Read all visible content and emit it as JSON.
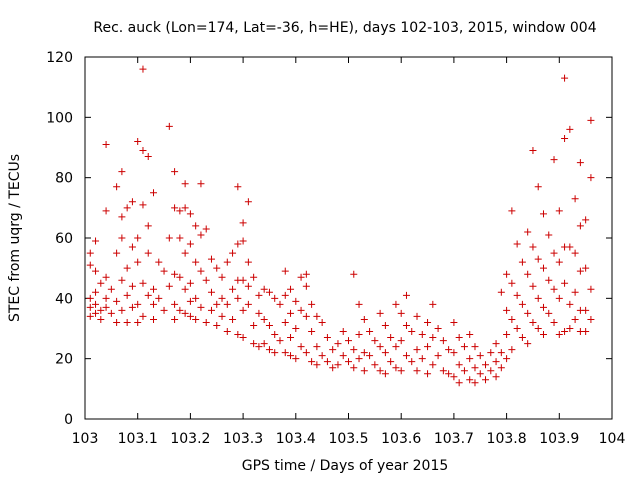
{
  "colors": {
    "points": "#cc0000",
    "axis": "#000000",
    "background": "#ffffff"
  },
  "chart_data": {
    "type": "scatter",
    "title": "Rec. auck (Lon=174, Lat=-36, h=HE), days 102-103, 2015, window 004",
    "xlabel": "GPS time / Days of year 2015",
    "ylabel": "STEC from uqrg / TECUs",
    "xlim": [
      103,
      104
    ],
    "ylim": [
      0,
      120
    ],
    "xticks": [
      103,
      103.1,
      103.2,
      103.3,
      103.4,
      103.5,
      103.6,
      103.7,
      103.8,
      103.9,
      104
    ],
    "xtick_labels": [
      "103",
      "103.1",
      "103.2",
      "103.3",
      "103.4",
      "103.5",
      "103.6",
      "103.7",
      "103.8",
      "103.9",
      "104"
    ],
    "yticks": [
      0,
      20,
      40,
      60,
      80,
      100,
      120
    ],
    "ytick_labels": [
      "0",
      "20",
      "40",
      "60",
      "80",
      "100",
      "120"
    ],
    "marker": "+",
    "series": [
      {
        "name": "STEC",
        "points": [
          [
            103.01,
            40
          ],
          [
            103.01,
            37
          ],
          [
            103.01,
            34
          ],
          [
            103.01,
            51
          ],
          [
            103.01,
            55
          ],
          [
            103.02,
            38
          ],
          [
            103.02,
            35
          ],
          [
            103.02,
            42
          ],
          [
            103.02,
            59
          ],
          [
            103.02,
            49
          ],
          [
            103.03,
            36
          ],
          [
            103.03,
            45
          ],
          [
            103.03,
            33
          ],
          [
            103.04,
            69
          ],
          [
            103.04,
            91
          ],
          [
            103.04,
            47
          ],
          [
            103.04,
            40
          ],
          [
            103.04,
            37
          ],
          [
            103.05,
            43
          ],
          [
            103.05,
            35
          ],
          [
            103.06,
            77
          ],
          [
            103.06,
            55
          ],
          [
            103.06,
            39
          ],
          [
            103.06,
            32
          ],
          [
            103.07,
            82
          ],
          [
            103.07,
            67
          ],
          [
            103.07,
            60
          ],
          [
            103.07,
            46
          ],
          [
            103.07,
            36
          ],
          [
            103.08,
            70
          ],
          [
            103.08,
            50
          ],
          [
            103.08,
            41
          ],
          [
            103.08,
            32
          ],
          [
            103.09,
            72
          ],
          [
            103.09,
            57
          ],
          [
            103.09,
            44
          ],
          [
            103.09,
            37
          ],
          [
            103.1,
            92
          ],
          [
            103.1,
            60
          ],
          [
            103.1,
            52
          ],
          [
            103.1,
            38
          ],
          [
            103.1,
            32
          ],
          [
            103.11,
            116
          ],
          [
            103.11,
            89
          ],
          [
            103.11,
            71
          ],
          [
            103.11,
            45
          ],
          [
            103.11,
            34
          ],
          [
            103.12,
            87
          ],
          [
            103.12,
            64
          ],
          [
            103.12,
            55
          ],
          [
            103.12,
            41
          ],
          [
            103.13,
            75
          ],
          [
            103.13,
            43
          ],
          [
            103.13,
            38
          ],
          [
            103.13,
            33
          ],
          [
            103.14,
            52
          ],
          [
            103.14,
            40
          ],
          [
            103.15,
            49
          ],
          [
            103.15,
            36
          ],
          [
            103.16,
            97
          ],
          [
            103.16,
            60
          ],
          [
            103.16,
            44
          ],
          [
            103.17,
            82
          ],
          [
            103.17,
            70
          ],
          [
            103.17,
            48
          ],
          [
            103.17,
            38
          ],
          [
            103.17,
            33
          ],
          [
            103.18,
            69
          ],
          [
            103.18,
            60
          ],
          [
            103.18,
            47
          ],
          [
            103.18,
            36
          ],
          [
            103.19,
            78
          ],
          [
            103.19,
            70
          ],
          [
            103.19,
            55
          ],
          [
            103.19,
            43
          ],
          [
            103.19,
            35
          ],
          [
            103.2,
            68
          ],
          [
            103.2,
            58
          ],
          [
            103.2,
            45
          ],
          [
            103.2,
            39
          ],
          [
            103.2,
            34
          ],
          [
            103.21,
            64
          ],
          [
            103.21,
            52
          ],
          [
            103.21,
            40
          ],
          [
            103.21,
            33
          ],
          [
            103.22,
            78
          ],
          [
            103.22,
            61
          ],
          [
            103.22,
            49
          ],
          [
            103.22,
            37
          ],
          [
            103.23,
            63
          ],
          [
            103.23,
            46
          ],
          [
            103.23,
            32
          ],
          [
            103.24,
            53
          ],
          [
            103.24,
            42
          ],
          [
            103.24,
            36
          ],
          [
            103.25,
            50
          ],
          [
            103.25,
            38
          ],
          [
            103.25,
            31
          ],
          [
            103.26,
            47
          ],
          [
            103.26,
            40
          ],
          [
            103.26,
            34
          ],
          [
            103.27,
            52
          ],
          [
            103.27,
            38
          ],
          [
            103.27,
            29
          ],
          [
            103.28,
            55
          ],
          [
            103.28,
            43
          ],
          [
            103.28,
            33
          ],
          [
            103.29,
            77
          ],
          [
            103.29,
            58
          ],
          [
            103.29,
            46
          ],
          [
            103.29,
            40
          ],
          [
            103.29,
            28
          ],
          [
            103.3,
            65
          ],
          [
            103.3,
            59
          ],
          [
            103.3,
            46
          ],
          [
            103.3,
            36
          ],
          [
            103.3,
            27
          ],
          [
            103.31,
            72
          ],
          [
            103.31,
            52
          ],
          [
            103.31,
            44
          ],
          [
            103.31,
            38
          ],
          [
            103.32,
            47
          ],
          [
            103.32,
            31
          ],
          [
            103.32,
            25
          ],
          [
            103.33,
            41
          ],
          [
            103.33,
            35
          ],
          [
            103.33,
            24
          ],
          [
            103.34,
            43
          ],
          [
            103.34,
            33
          ],
          [
            103.34,
            25
          ],
          [
            103.35,
            42
          ],
          [
            103.35,
            31
          ],
          [
            103.35,
            23
          ],
          [
            103.36,
            40
          ],
          [
            103.36,
            28
          ],
          [
            103.36,
            22
          ],
          [
            103.37,
            38
          ],
          [
            103.37,
            26
          ],
          [
            103.38,
            49
          ],
          [
            103.38,
            41
          ],
          [
            103.38,
            32
          ],
          [
            103.38,
            22
          ],
          [
            103.39,
            43
          ],
          [
            103.39,
            35
          ],
          [
            103.39,
            27
          ],
          [
            103.39,
            21
          ],
          [
            103.4,
            39
          ],
          [
            103.4,
            30
          ],
          [
            103.4,
            20
          ],
          [
            103.41,
            47
          ],
          [
            103.41,
            36
          ],
          [
            103.41,
            24
          ],
          [
            103.42,
            48
          ],
          [
            103.42,
            44
          ],
          [
            103.42,
            34
          ],
          [
            103.42,
            22
          ],
          [
            103.43,
            38
          ],
          [
            103.43,
            29
          ],
          [
            103.43,
            19
          ],
          [
            103.44,
            34
          ],
          [
            103.44,
            24
          ],
          [
            103.44,
            18
          ],
          [
            103.45,
            32
          ],
          [
            103.45,
            21
          ],
          [
            103.46,
            27
          ],
          [
            103.46,
            19
          ],
          [
            103.47,
            23
          ],
          [
            103.47,
            17
          ],
          [
            103.48,
            25
          ],
          [
            103.48,
            18
          ],
          [
            103.49,
            29
          ],
          [
            103.49,
            21
          ],
          [
            103.5,
            26
          ],
          [
            103.5,
            19
          ],
          [
            103.51,
            48
          ],
          [
            103.51,
            23
          ],
          [
            103.51,
            17
          ],
          [
            103.52,
            38
          ],
          [
            103.52,
            28
          ],
          [
            103.52,
            20
          ],
          [
            103.53,
            33
          ],
          [
            103.53,
            22
          ],
          [
            103.53,
            16
          ],
          [
            103.54,
            29
          ],
          [
            103.54,
            21
          ],
          [
            103.55,
            26
          ],
          [
            103.55,
            18
          ],
          [
            103.56,
            35
          ],
          [
            103.56,
            24
          ],
          [
            103.56,
            16
          ],
          [
            103.57,
            31
          ],
          [
            103.57,
            22
          ],
          [
            103.57,
            15
          ],
          [
            103.58,
            27
          ],
          [
            103.58,
            19
          ],
          [
            103.59,
            38
          ],
          [
            103.59,
            24
          ],
          [
            103.59,
            17
          ],
          [
            103.6,
            35
          ],
          [
            103.6,
            26
          ],
          [
            103.6,
            16
          ],
          [
            103.61,
            41
          ],
          [
            103.61,
            31
          ],
          [
            103.61,
            21
          ],
          [
            103.62,
            29
          ],
          [
            103.62,
            19
          ],
          [
            103.63,
            34
          ],
          [
            103.63,
            23
          ],
          [
            103.63,
            16
          ],
          [
            103.64,
            28
          ],
          [
            103.64,
            20
          ],
          [
            103.65,
            32
          ],
          [
            103.65,
            24
          ],
          [
            103.65,
            15
          ],
          [
            103.66,
            38
          ],
          [
            103.66,
            27
          ],
          [
            103.66,
            18
          ],
          [
            103.67,
            30
          ],
          [
            103.67,
            21
          ],
          [
            103.68,
            26
          ],
          [
            103.68,
            16
          ],
          [
            103.69,
            23
          ],
          [
            103.69,
            15
          ],
          [
            103.7,
            32
          ],
          [
            103.7,
            22
          ],
          [
            103.7,
            14
          ],
          [
            103.71,
            27
          ],
          [
            103.71,
            18
          ],
          [
            103.71,
            12
          ],
          [
            103.72,
            24
          ],
          [
            103.72,
            16
          ],
          [
            103.73,
            28
          ],
          [
            103.73,
            20
          ],
          [
            103.73,
            13
          ],
          [
            103.74,
            24
          ],
          [
            103.74,
            17
          ],
          [
            103.74,
            12
          ],
          [
            103.75,
            21
          ],
          [
            103.75,
            15
          ],
          [
            103.76,
            18
          ],
          [
            103.76,
            13
          ],
          [
            103.77,
            22
          ],
          [
            103.77,
            16
          ],
          [
            103.78,
            25
          ],
          [
            103.78,
            19
          ],
          [
            103.78,
            14
          ],
          [
            103.79,
            42
          ],
          [
            103.79,
            22
          ],
          [
            103.79,
            17
          ],
          [
            103.8,
            48
          ],
          [
            103.8,
            36
          ],
          [
            103.8,
            28
          ],
          [
            103.8,
            20
          ],
          [
            103.81,
            69
          ],
          [
            103.81,
            45
          ],
          [
            103.81,
            33
          ],
          [
            103.81,
            23
          ],
          [
            103.82,
            58
          ],
          [
            103.82,
            41
          ],
          [
            103.82,
            30
          ],
          [
            103.83,
            52
          ],
          [
            103.83,
            38
          ],
          [
            103.83,
            27
          ],
          [
            103.84,
            62
          ],
          [
            103.84,
            48
          ],
          [
            103.84,
            35
          ],
          [
            103.84,
            25
          ],
          [
            103.85,
            89
          ],
          [
            103.85,
            57
          ],
          [
            103.85,
            44
          ],
          [
            103.85,
            32
          ],
          [
            103.86,
            77
          ],
          [
            103.86,
            53
          ],
          [
            103.86,
            40
          ],
          [
            103.86,
            30
          ],
          [
            103.87,
            68
          ],
          [
            103.87,
            50
          ],
          [
            103.87,
            37
          ],
          [
            103.87,
            28
          ],
          [
            103.88,
            61
          ],
          [
            103.88,
            46
          ],
          [
            103.88,
            35
          ],
          [
            103.89,
            86
          ],
          [
            103.89,
            55
          ],
          [
            103.89,
            43
          ],
          [
            103.89,
            32
          ],
          [
            103.9,
            69
          ],
          [
            103.9,
            52
          ],
          [
            103.9,
            40
          ],
          [
            103.9,
            28
          ],
          [
            103.91,
            113
          ],
          [
            103.91,
            93
          ],
          [
            103.91,
            57
          ],
          [
            103.91,
            45
          ],
          [
            103.91,
            29
          ],
          [
            103.92,
            96
          ],
          [
            103.92,
            57
          ],
          [
            103.92,
            38
          ],
          [
            103.92,
            30
          ],
          [
            103.93,
            73
          ],
          [
            103.93,
            55
          ],
          [
            103.93,
            42
          ],
          [
            103.93,
            33
          ],
          [
            103.94,
            85
          ],
          [
            103.94,
            64
          ],
          [
            103.94,
            49
          ],
          [
            103.94,
            36
          ],
          [
            103.94,
            29
          ],
          [
            103.95,
            66
          ],
          [
            103.95,
            50
          ],
          [
            103.95,
            36
          ],
          [
            103.95,
            29
          ],
          [
            103.96,
            80
          ],
          [
            103.96,
            99
          ],
          [
            103.96,
            43
          ],
          [
            103.96,
            33
          ]
        ]
      }
    ]
  }
}
